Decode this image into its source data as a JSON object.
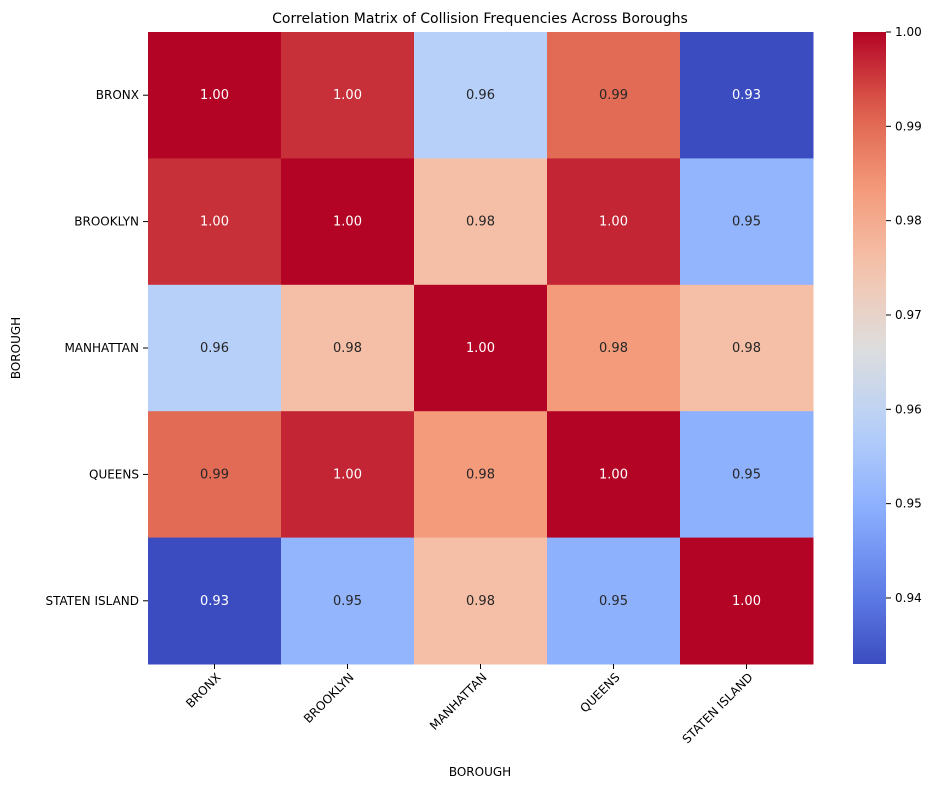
{
  "chart_data": {
    "type": "heatmap",
    "title": "Correlation Matrix of Collision Frequencies Across Boroughs",
    "xlabel": "BOROUGH",
    "ylabel": "BOROUGH",
    "x_categories": [
      "BRONX",
      "BROOKLYN",
      "MANHATTAN",
      "QUEENS",
      "STATEN ISLAND"
    ],
    "y_categories": [
      "BRONX",
      "BROOKLYN",
      "MANHATTAN",
      "QUEENS",
      "STATEN ISLAND"
    ],
    "values": [
      [
        1.0,
        0.996,
        0.958,
        0.99,
        0.933
      ],
      [
        0.996,
        1.0,
        0.976,
        0.997,
        0.951
      ],
      [
        0.958,
        0.976,
        1.0,
        0.983,
        0.976
      ],
      [
        0.99,
        0.997,
        0.983,
        1.0,
        0.95
      ],
      [
        0.933,
        0.951,
        0.976,
        0.95,
        1.0
      ]
    ],
    "annotations": [
      [
        "1.00",
        "1.00",
        "0.96",
        "0.99",
        "0.93"
      ],
      [
        "1.00",
        "1.00",
        "0.98",
        "1.00",
        "0.95"
      ],
      [
        "0.96",
        "0.98",
        "1.00",
        "0.98",
        "0.98"
      ],
      [
        "0.99",
        "1.00",
        "0.98",
        "1.00",
        "0.95"
      ],
      [
        "0.93",
        "0.95",
        "0.98",
        "0.95",
        "1.00"
      ]
    ],
    "colormap": "coolwarm",
    "colorbar": {
      "vmin": 0.933,
      "vmax": 1.0,
      "ticks": [
        0.94,
        0.95,
        0.96,
        0.97,
        0.98,
        0.99,
        1.0
      ],
      "tick_labels": [
        "0.94",
        "0.95",
        "0.96",
        "0.97",
        "0.98",
        "0.99",
        "1.00"
      ]
    },
    "grid": false,
    "legend": "colorbar-right"
  }
}
